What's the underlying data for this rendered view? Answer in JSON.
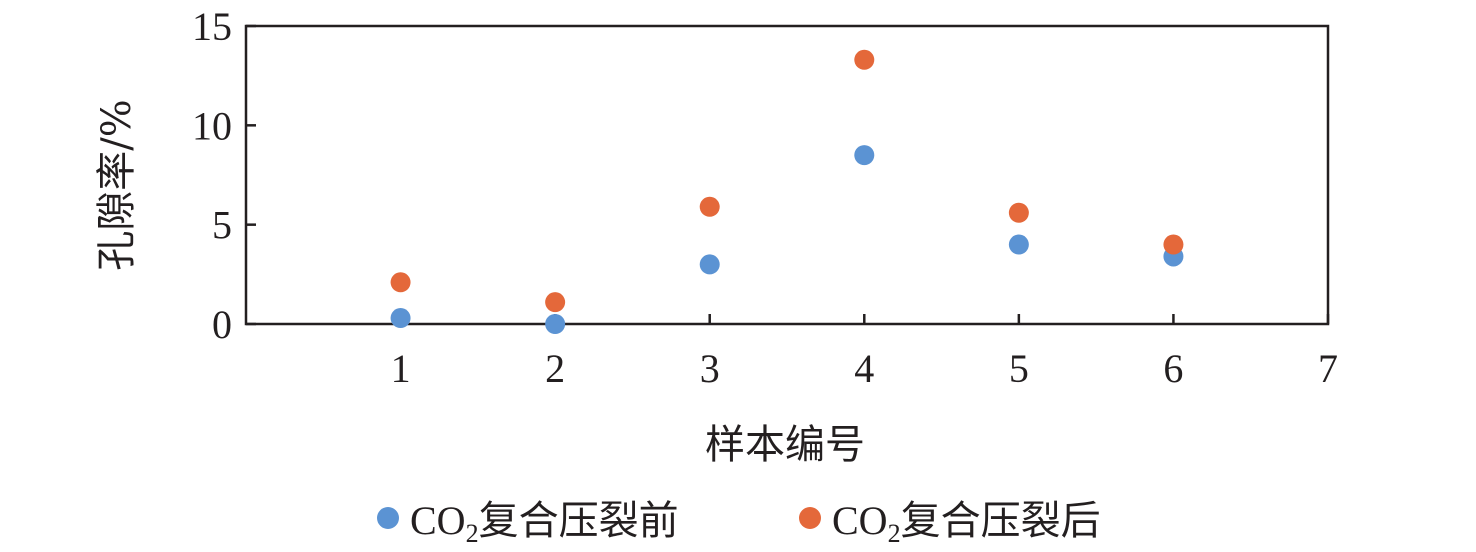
{
  "chart_data": {
    "type": "scatter",
    "title": "",
    "xlabel": "样本编号",
    "ylabel": "孔隙率/%",
    "xlim": [
      0,
      7
    ],
    "ylim": [
      0,
      15
    ],
    "xticks": [
      "1",
      "2",
      "3",
      "4",
      "5",
      "6",
      "7"
    ],
    "yticks": [
      "0",
      "5",
      "10",
      "15"
    ],
    "grid": false,
    "legend_position": "bottom",
    "series": [
      {
        "name": "CO2复合压裂前",
        "name_main": "CO",
        "name_sub": "2",
        "name_rest": "复合压裂前",
        "color": "#5b93d3",
        "points": [
          {
            "x": 1,
            "y": 0.3
          },
          {
            "x": 2,
            "y": 0.0
          },
          {
            "x": 3,
            "y": 3.0
          },
          {
            "x": 4,
            "y": 8.5
          },
          {
            "x": 5,
            "y": 4.0
          },
          {
            "x": 6,
            "y": 3.4
          }
        ]
      },
      {
        "name": "CO2复合压裂后",
        "name_main": "CO",
        "name_sub": "2",
        "name_rest": "复合压裂后",
        "color": "#e4683a",
        "points": [
          {
            "x": 1,
            "y": 2.1
          },
          {
            "x": 2,
            "y": 1.1
          },
          {
            "x": 3,
            "y": 5.9
          },
          {
            "x": 4,
            "y": 13.3
          },
          {
            "x": 5,
            "y": 5.6
          },
          {
            "x": 6,
            "y": 4.0
          }
        ]
      }
    ]
  }
}
